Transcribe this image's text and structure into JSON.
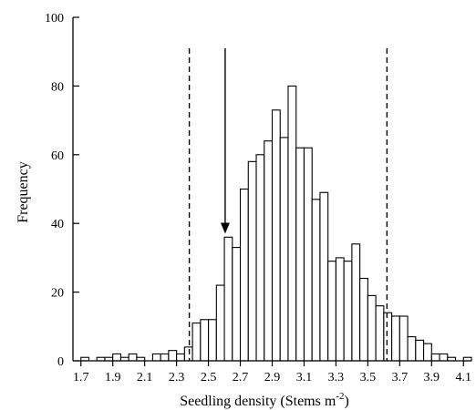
{
  "chart_data": {
    "type": "bar",
    "title": "",
    "xlabel": "Seedling density (Stems m",
    "xlabel_sup": "-2",
    "xlabel_end": ")",
    "ylabel": "Frequency",
    "xlim": [
      1.65,
      4.15
    ],
    "ylim": [
      0,
      100
    ],
    "bin_width": 0.05,
    "x_ticks": [
      "1.7",
      "1.9",
      "2.1",
      "2.3",
      "2.5",
      "2.7",
      "2.9",
      "3.1",
      "3.3",
      "3.5",
      "3.7",
      "3.9",
      "4.1"
    ],
    "y_ticks": [
      "0",
      "20",
      "40",
      "60",
      "80",
      "100"
    ],
    "bins_start": [
      1.7,
      1.75,
      1.8,
      1.85,
      1.9,
      1.95,
      2.0,
      2.05,
      2.1,
      2.15,
      2.2,
      2.25,
      2.3,
      2.35,
      2.4,
      2.45,
      2.5,
      2.55,
      2.6,
      2.65,
      2.7,
      2.75,
      2.8,
      2.85,
      2.9,
      2.95,
      3.0,
      3.05,
      3.1,
      3.15,
      3.2,
      3.25,
      3.3,
      3.35,
      3.4,
      3.45,
      3.5,
      3.55,
      3.6,
      3.65,
      3.7,
      3.75,
      3.8,
      3.85,
      3.9,
      3.95,
      4.0,
      4.05,
      4.1
    ],
    "values": [
      1,
      0,
      1,
      1,
      2,
      1,
      2,
      1,
      0,
      2,
      2,
      3,
      2,
      4,
      11,
      12,
      12,
      22,
      36,
      33,
      50,
      58,
      60,
      64,
      73,
      65,
      80,
      62,
      62,
      47,
      49,
      29,
      30,
      29,
      34,
      24,
      19,
      16,
      14,
      13,
      13,
      7,
      6,
      5,
      2,
      2,
      1,
      0,
      1
    ],
    "dashed_lines_x": [
      2.38,
      3.62
    ],
    "arrow": {
      "x": 2.605,
      "y_from": 100,
      "y_to": 37
    },
    "grid": false,
    "legend": "none"
  }
}
